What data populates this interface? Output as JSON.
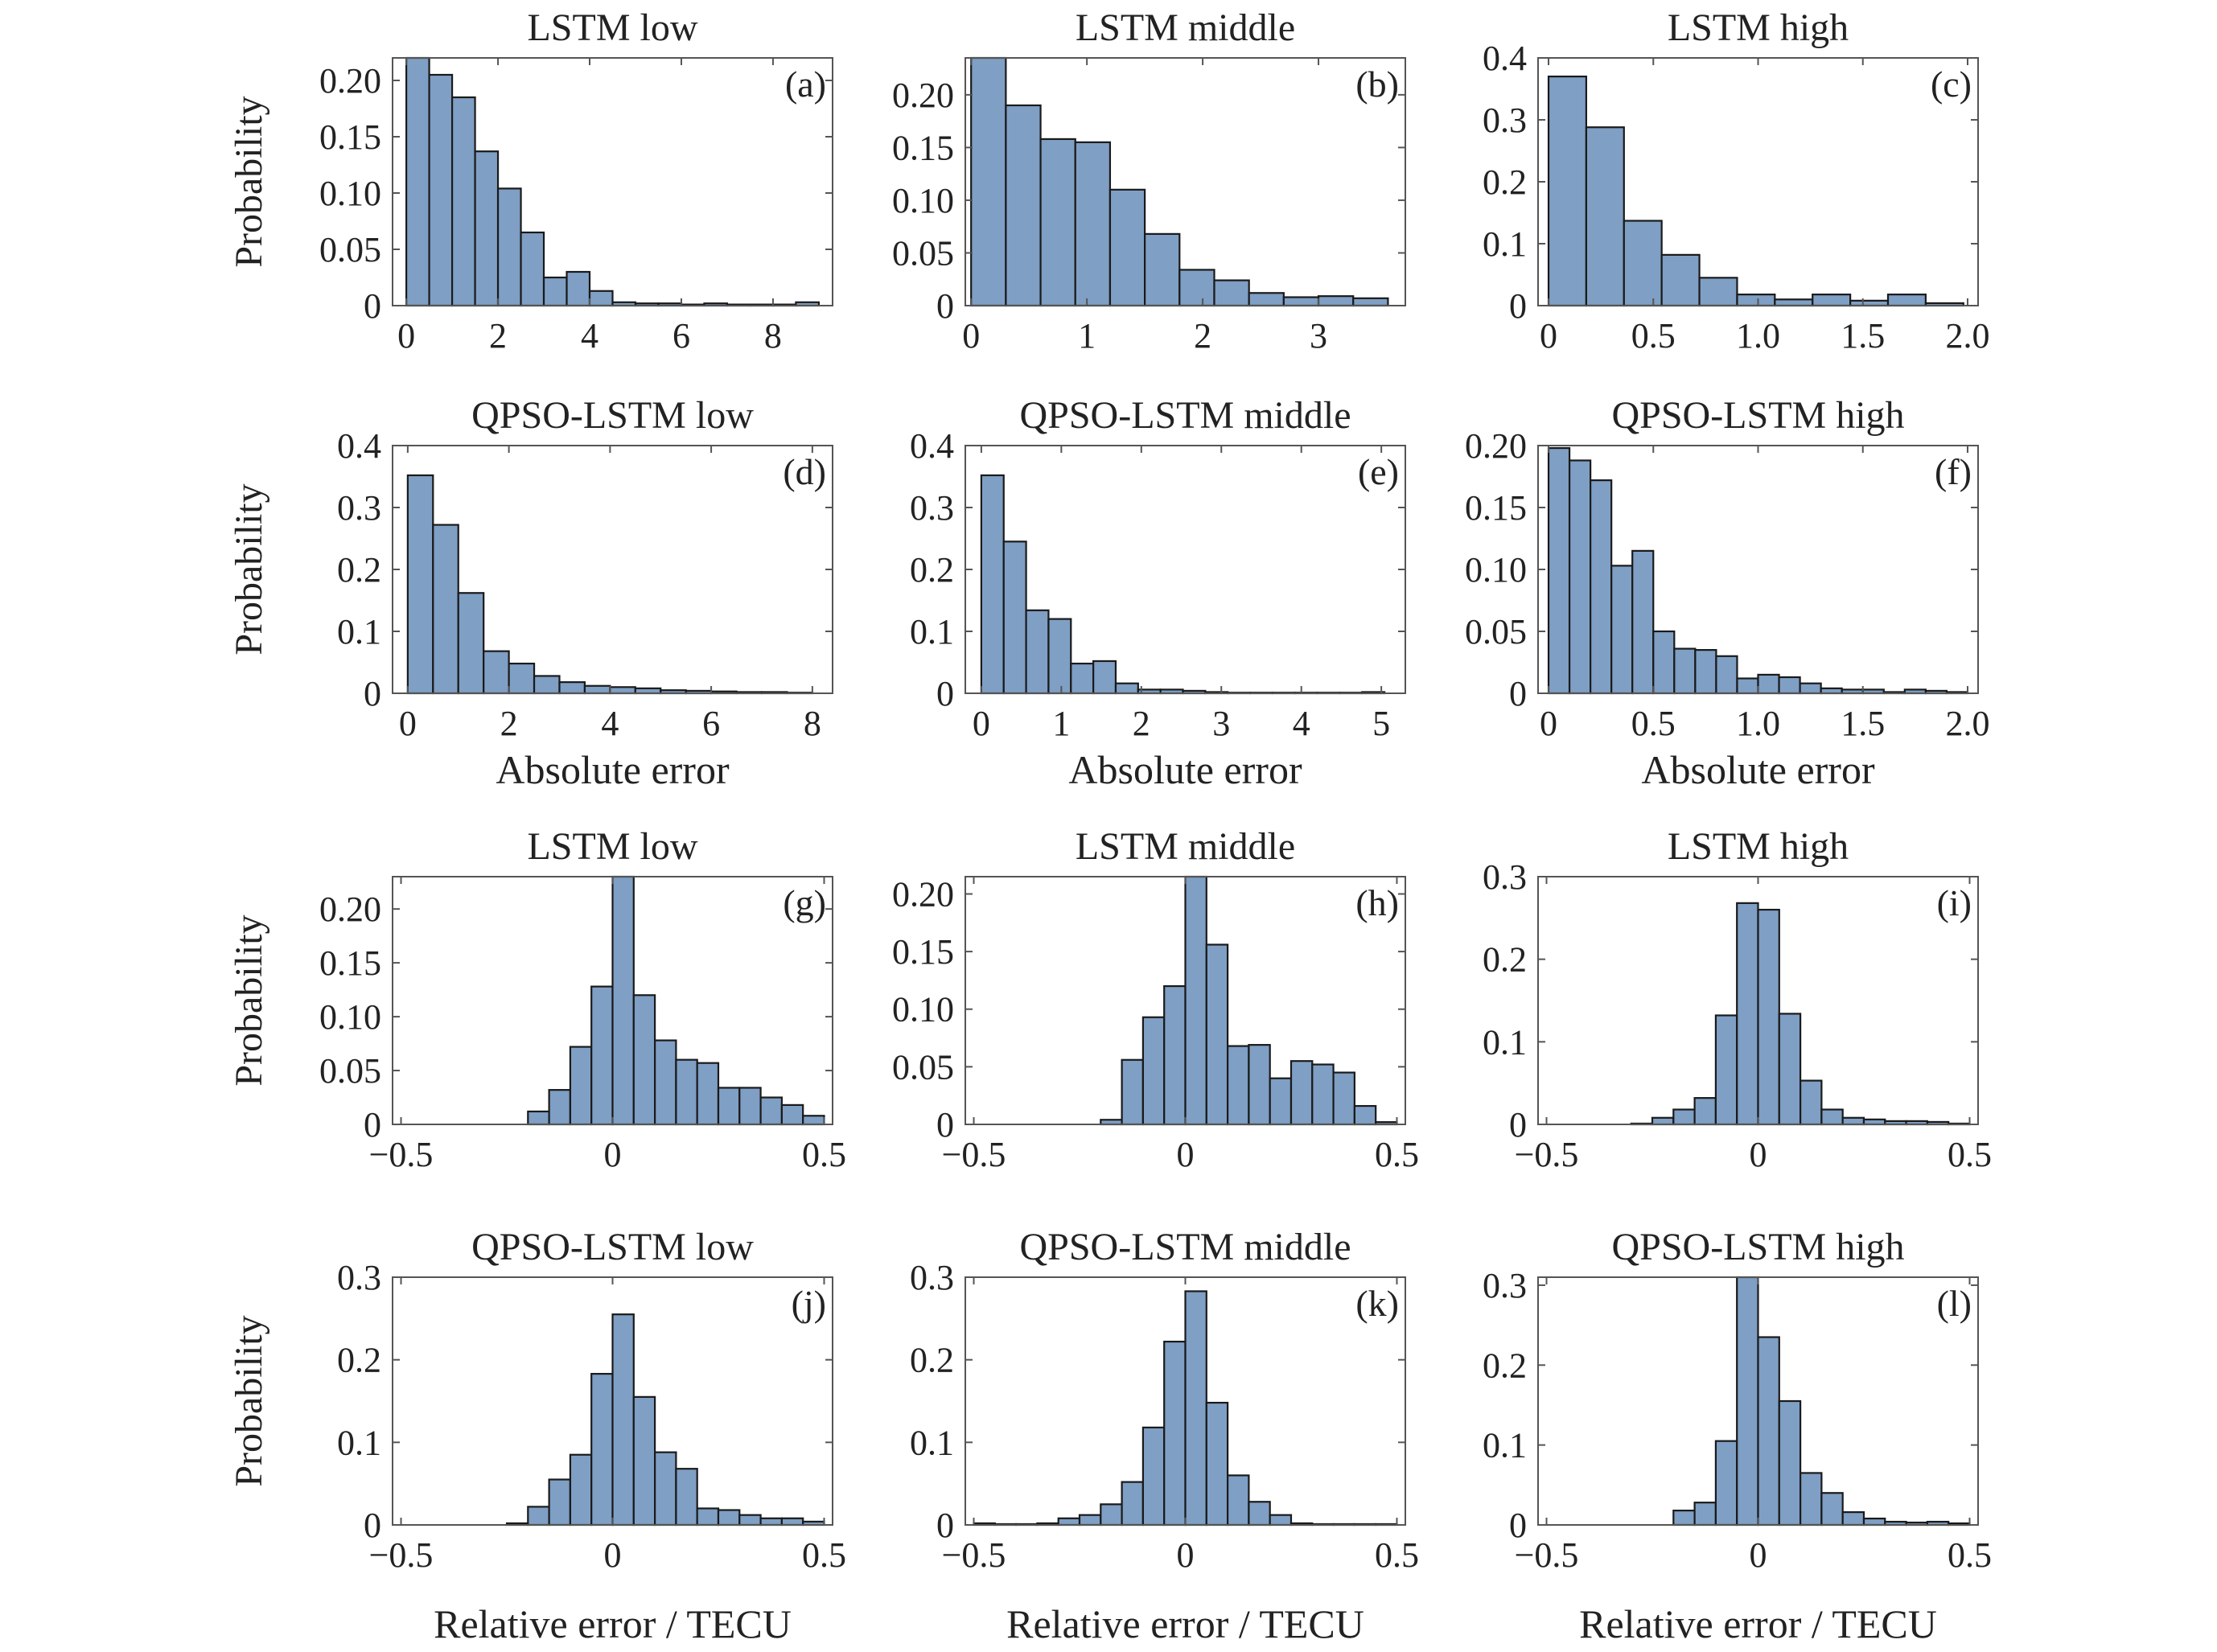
{
  "figure": {
    "colors": {
      "bar_fill": "#7f9fc4",
      "bar_edge": "#1a1a1a",
      "axes": "#555555",
      "text": "#222222"
    },
    "ylabel_text": "Probability",
    "abs_xlabel_text": "Absolute error",
    "rel_xlabel_text": "Relative error / TECU"
  },
  "chart_data": [
    {
      "panel": "a",
      "type": "bar",
      "title": "LSTM low",
      "tag": "(a)",
      "ylabel": "Probability",
      "xlabel": "",
      "xlim": [
        -0.3,
        9.3
      ],
      "ylim": [
        0,
        0.22
      ],
      "xticks": [
        0,
        2,
        4,
        6,
        8
      ],
      "xtick_labels": [
        "0",
        "2",
        "4",
        "6",
        "8"
      ],
      "yticks": [
        0,
        0.05,
        0.1,
        0.15,
        0.2
      ],
      "ytick_labels": [
        "0",
        "0.05",
        "0.10",
        "0.15",
        "0.20"
      ],
      "bin_start": 0,
      "bin_width": 0.5,
      "values": [
        0.22,
        0.205,
        0.185,
        0.137,
        0.104,
        0.065,
        0.025,
        0.03,
        0.013,
        0.003,
        0.002,
        0.002,
        0.001,
        0.002,
        0.001,
        0.001,
        0.001,
        0.003
      ]
    },
    {
      "panel": "b",
      "type": "bar",
      "title": "LSTM middle",
      "tag": "(b)",
      "ylabel": "",
      "xlabel": "",
      "xlim": [
        -0.05,
        3.75
      ],
      "ylim": [
        0,
        0.235
      ],
      "xticks": [
        0,
        1,
        2,
        3
      ],
      "xtick_labels": [
        "0",
        "1",
        "2",
        "3"
      ],
      "yticks": [
        0,
        0.05,
        0.1,
        0.15,
        0.2
      ],
      "ytick_labels": [
        "0",
        "0.05",
        "0.10",
        "0.15",
        "0.20"
      ],
      "bin_start": 0,
      "bin_width": 0.3,
      "values": [
        0.235,
        0.19,
        0.158,
        0.155,
        0.11,
        0.068,
        0.034,
        0.024,
        0.012,
        0.008,
        0.009,
        0.007
      ]
    },
    {
      "panel": "c",
      "type": "bar",
      "title": "LSTM high",
      "tag": "(c)",
      "ylabel": "",
      "xlabel": "",
      "xlim": [
        -0.05,
        2.05
      ],
      "ylim": [
        0,
        0.4
      ],
      "xticks": [
        0,
        0.5,
        1.0,
        1.5,
        2.0
      ],
      "xtick_labels": [
        "0",
        "0.5",
        "1.0",
        "1.5",
        "2.0"
      ],
      "yticks": [
        0,
        0.1,
        0.2,
        0.3,
        0.4
      ],
      "ytick_labels": [
        "0",
        "0.1",
        "0.2",
        "0.3",
        "0.4"
      ],
      "bin_start": 0,
      "bin_width": 0.18,
      "values": [
        0.37,
        0.288,
        0.137,
        0.082,
        0.045,
        0.018,
        0.01,
        0.018,
        0.008,
        0.018,
        0.004
      ]
    },
    {
      "panel": "d",
      "type": "bar",
      "title": "QPSO-LSTM low",
      "tag": "(d)",
      "ylabel": "Probability",
      "xlabel": "Absolute error",
      "xlim": [
        -0.3,
        8.4
      ],
      "ylim": [
        0,
        0.4
      ],
      "xticks": [
        0,
        2,
        4,
        6,
        8
      ],
      "xtick_labels": [
        "0",
        "2",
        "4",
        "6",
        "8"
      ],
      "yticks": [
        0,
        0.1,
        0.2,
        0.3,
        0.4
      ],
      "ytick_labels": [
        "0",
        "0.1",
        "0.2",
        "0.3",
        "0.4"
      ],
      "bin_start": 0,
      "bin_width": 0.5,
      "values": [
        0.352,
        0.272,
        0.162,
        0.068,
        0.048,
        0.028,
        0.018,
        0.012,
        0.01,
        0.008,
        0.005,
        0.004,
        0.003,
        0.002,
        0.002,
        0.001
      ]
    },
    {
      "panel": "e",
      "type": "bar",
      "title": "QPSO-LSTM middle",
      "tag": "(e)",
      "ylabel": "",
      "xlabel": "Absolute error",
      "xlim": [
        -0.2,
        5.3
      ],
      "ylim": [
        0,
        0.4
      ],
      "xticks": [
        0,
        1,
        2,
        3,
        4,
        5
      ],
      "xtick_labels": [
        "0",
        "1",
        "2",
        "3",
        "4",
        "5"
      ],
      "yticks": [
        0,
        0.1,
        0.2,
        0.3,
        0.4
      ],
      "ytick_labels": [
        "0",
        "0.1",
        "0.2",
        "0.3",
        "0.4"
      ],
      "bin_start": 0,
      "bin_width": 0.28,
      "values": [
        0.352,
        0.245,
        0.134,
        0.12,
        0.048,
        0.052,
        0.016,
        0.006,
        0.006,
        0.004,
        0.002,
        0.001,
        0.001,
        0.001,
        0.001,
        0.001,
        0.001,
        0.002
      ]
    },
    {
      "panel": "f",
      "type": "bar",
      "title": "QPSO-LSTM high",
      "tag": "(f)",
      "ylabel": "",
      "xlabel": "Absolute error",
      "xlim": [
        -0.05,
        2.05
      ],
      "ylim": [
        0,
        0.2
      ],
      "xticks": [
        0,
        0.5,
        1.0,
        1.5,
        2.0
      ],
      "xtick_labels": [
        "0",
        "0.5",
        "1.0",
        "1.5",
        "2.0"
      ],
      "yticks": [
        0,
        0.05,
        0.1,
        0.15,
        0.2
      ],
      "ytick_labels": [
        "0",
        "0.05",
        "0.10",
        "0.15",
        "0.20"
      ],
      "bin_start": 0,
      "bin_width": 0.1,
      "values": [
        0.198,
        0.188,
        0.172,
        0.103,
        0.115,
        0.05,
        0.036,
        0.035,
        0.03,
        0.012,
        0.015,
        0.013,
        0.008,
        0.004,
        0.003,
        0.003,
        0.001,
        0.003,
        0.002,
        0.001
      ]
    },
    {
      "panel": "g",
      "type": "bar",
      "title": "LSTM low",
      "tag": "(g)",
      "ylabel": "Probability",
      "xlabel": "",
      "xlim": [
        -0.52,
        0.52
      ],
      "ylim": [
        0,
        0.23
      ],
      "xticks": [
        -0.5,
        0,
        0.5
      ],
      "xtick_labels": [
        "−0.5",
        "0",
        "0.5"
      ],
      "yticks": [
        0,
        0.05,
        0.1,
        0.15,
        0.2
      ],
      "ytick_labels": [
        "0",
        "0.05",
        "0.10",
        "0.15",
        "0.20"
      ],
      "bin_start": -0.5,
      "bin_width": 0.05,
      "values": [
        0,
        0,
        0,
        0,
        0,
        0,
        0.012,
        0.032,
        0.072,
        0.128,
        0.23,
        0.12,
        0.078,
        0.06,
        0.057,
        0.034,
        0.034,
        0.025,
        0.018,
        0.008
      ]
    },
    {
      "panel": "h",
      "type": "bar",
      "title": "LSTM middle",
      "tag": "(h)",
      "ylabel": "",
      "xlabel": "",
      "xlim": [
        -0.52,
        0.52
      ],
      "ylim": [
        0,
        0.215
      ],
      "xticks": [
        -0.5,
        0,
        0.5
      ],
      "xtick_labels": [
        "−0.5",
        "0",
        "0.5"
      ],
      "yticks": [
        0,
        0.05,
        0.1,
        0.15,
        0.2
      ],
      "ytick_labels": [
        "0",
        "0.05",
        "0.10",
        "0.15",
        "0.20"
      ],
      "bin_start": -0.5,
      "bin_width": 0.05,
      "values": [
        0,
        0,
        0,
        0,
        0,
        0,
        0.004,
        0.056,
        0.093,
        0.12,
        0.215,
        0.156,
        0.068,
        0.069,
        0.04,
        0.055,
        0.052,
        0.045,
        0.016,
        0.002
      ]
    },
    {
      "panel": "i",
      "type": "bar",
      "title": "LSTM high",
      "tag": "(i)",
      "ylabel": "",
      "xlabel": "",
      "xlim": [
        -0.52,
        0.52
      ],
      "ylim": [
        0,
        0.3
      ],
      "xticks": [
        -0.5,
        0,
        0.5
      ],
      "xtick_labels": [
        "−0.5",
        "0",
        "0.5"
      ],
      "yticks": [
        0,
        0.1,
        0.2,
        0.3
      ],
      "ytick_labels": [
        "0",
        "0.1",
        "0.2",
        "0.3"
      ],
      "bin_start": -0.5,
      "bin_width": 0.05,
      "values": [
        0,
        0,
        0,
        0,
        0.001,
        0.008,
        0.018,
        0.032,
        0.132,
        0.268,
        0.26,
        0.134,
        0.053,
        0.018,
        0.008,
        0.006,
        0.004,
        0.004,
        0.003,
        0.001
      ]
    },
    {
      "panel": "j",
      "type": "bar",
      "title": "QPSO-LSTM low",
      "tag": "(j)",
      "ylabel": "Probability",
      "xlabel": "Relative error / TECU",
      "xlim": [
        -0.52,
        0.52
      ],
      "ylim": [
        0,
        0.3
      ],
      "xticks": [
        -0.5,
        0,
        0.5
      ],
      "xtick_labels": [
        "−0.5",
        "0",
        "0.5"
      ],
      "yticks": [
        0,
        0.1,
        0.2,
        0.3
      ],
      "ytick_labels": [
        "0",
        "0.1",
        "0.2",
        "0.3"
      ],
      "bin_start": -0.5,
      "bin_width": 0.05,
      "values": [
        0,
        0,
        0,
        0,
        0,
        0.002,
        0.022,
        0.055,
        0.085,
        0.183,
        0.255,
        0.155,
        0.088,
        0.068,
        0.02,
        0.018,
        0.012,
        0.008,
        0.008,
        0.004
      ]
    },
    {
      "panel": "k",
      "type": "bar",
      "title": "QPSO-LSTM middle",
      "tag": "(k)",
      "ylabel": "",
      "xlabel": "Relative error / TECU",
      "xlim": [
        -0.52,
        0.52
      ],
      "ylim": [
        0,
        0.3
      ],
      "xticks": [
        -0.5,
        0,
        0.5
      ],
      "xtick_labels": [
        "−0.5",
        "0",
        "0.5"
      ],
      "yticks": [
        0,
        0.1,
        0.2,
        0.3
      ],
      "ytick_labels": [
        "0",
        "0.1",
        "0.2",
        "0.3"
      ],
      "bin_start": -0.5,
      "bin_width": 0.05,
      "values": [
        0.002,
        0.001,
        0.001,
        0.002,
        0.008,
        0.012,
        0.025,
        0.052,
        0.118,
        0.222,
        0.283,
        0.148,
        0.06,
        0.028,
        0.012,
        0.002,
        0.001,
        0.001,
        0.001,
        0.001
      ]
    },
    {
      "panel": "l",
      "type": "bar",
      "title": "QPSO-LSTM high",
      "tag": "(l)",
      "ylabel": "",
      "xlabel": "Relative error / TECU",
      "xlim": [
        -0.52,
        0.52
      ],
      "ylim": [
        0,
        0.31
      ],
      "xticks": [
        -0.5,
        0,
        0.5
      ],
      "xtick_labels": [
        "−0.5",
        "0",
        "0.5"
      ],
      "yticks": [
        0,
        0.1,
        0.2,
        0.3
      ],
      "ytick_labels": [
        "0",
        "0.1",
        "0.2",
        "0.3"
      ],
      "bin_start": -0.5,
      "bin_width": 0.05,
      "values": [
        0,
        0,
        0,
        0,
        0,
        0,
        0.018,
        0.028,
        0.105,
        0.31,
        0.235,
        0.155,
        0.065,
        0.04,
        0.016,
        0.008,
        0.004,
        0.003,
        0.004,
        0.002
      ]
    }
  ]
}
